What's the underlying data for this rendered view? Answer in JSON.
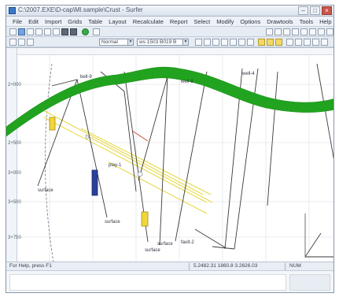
{
  "window": {
    "title": "C:\\2007.EXE\\D-cap\\Ml.sample\\Crust - Surfer"
  },
  "menu": [
    "File",
    "Edit",
    "Import",
    "Grids",
    "Table",
    "Layout",
    "Recalculate",
    "Report",
    "Select",
    "Modify",
    "Options",
    "Drawtools",
    "Tools",
    "Help"
  ],
  "toolbar": {
    "combo1": "Normal",
    "combo2": "ws 1503 B019 B"
  },
  "plot": {
    "y_labels": [
      "2+000",
      "2+500",
      "3+000",
      "3+500",
      "3+750"
    ],
    "annotations": [
      {
        "text": "bell-9",
        "kind": "well"
      },
      {
        "text": "well-8",
        "kind": "well"
      },
      {
        "text": "well-4",
        "kind": "well"
      },
      {
        "text": "surface",
        "kind": "label"
      },
      {
        "text": "surface",
        "kind": "label"
      },
      {
        "text": "surface",
        "kind": "label"
      },
      {
        "text": "play-1",
        "kind": "label"
      },
      {
        "text": "surface",
        "kind": "label"
      },
      {
        "text": "fault-2",
        "kind": "label"
      }
    ]
  },
  "status": {
    "left": "For Help, press F1",
    "coords": "5.2482.31 1860.8 3.2626.03",
    "zoom": "NUM"
  },
  "colors": {
    "horizon_green": "#22a31f",
    "line_yellow": "#e7d94b",
    "marker_blue": "#2b3f9c",
    "marker_yellow": "#f0d63a",
    "well_line": "#3a3a3a"
  }
}
